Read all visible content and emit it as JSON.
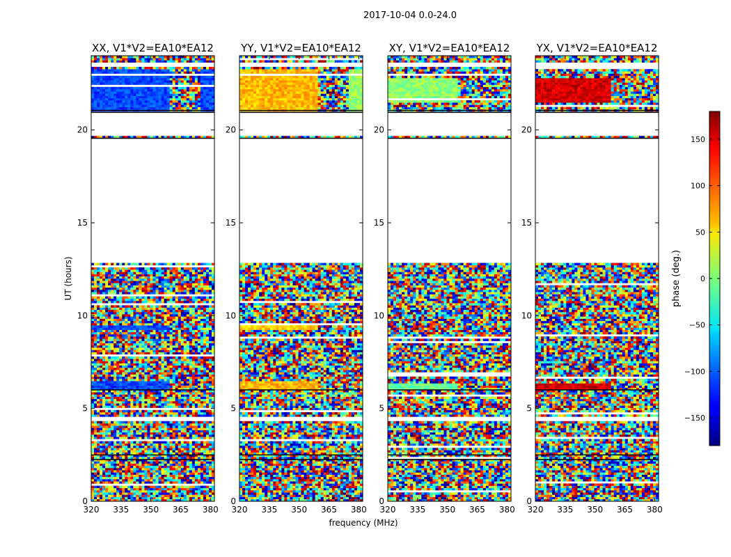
{
  "figure": {
    "suptitle": "2017-10-04 0.0-24.0",
    "colorbar_label": "phase (deg.)"
  },
  "colors": {
    "colormap": "jet",
    "flagged": "#ffffff",
    "axes": "#000000"
  },
  "chart_data": [
    {
      "type": "heatmap",
      "title": "XX, V1*V2=EA10*EA12",
      "xlabel": "",
      "ylabel": "UT (hours)",
      "xlim": [
        320,
        382
      ],
      "ylim": [
        0,
        24
      ],
      "x_ticks": [
        320,
        335,
        350,
        365,
        380
      ],
      "y_ticks": [
        0,
        5,
        10,
        15,
        20
      ],
      "z_label": "phase (deg.)",
      "z_range": [
        -180,
        180
      ],
      "z_ticks": [
        150,
        100,
        50,
        0,
        -50,
        -100,
        -150
      ],
      "flagged_ut_ranges": [
        [
          4.3,
          4.5
        ],
        [
          12.8,
          19.5
        ],
        [
          19.7,
          21.0
        ],
        [
          23.4,
          23.7
        ]
      ],
      "coherent_bands": [
        {
          "ut": [
            21.0,
            23.3
          ],
          "freq": [
            320,
            360
          ],
          "phase": -110
        },
        {
          "ut": [
            9.3,
            9.5
          ],
          "freq": [
            320,
            360
          ],
          "phase": -110
        },
        {
          "ut": [
            6.0,
            6.5
          ],
          "freq": [
            320,
            360
          ],
          "phase": -110
        },
        {
          "ut": [
            21.0,
            23.3
          ],
          "freq": [
            375,
            382
          ],
          "phase": -110
        }
      ]
    },
    {
      "type": "heatmap",
      "title": "YY, V1*V2=EA10*EA12",
      "xlabel": "frequency (MHz)",
      "ylabel": "",
      "xlim": [
        320,
        382
      ],
      "ylim": [
        0,
        24
      ],
      "x_ticks": [
        320,
        335,
        350,
        365,
        380
      ],
      "y_ticks": [
        0,
        5,
        10,
        15,
        20
      ],
      "z_label": "phase (deg.)",
      "z_range": [
        -180,
        180
      ],
      "flagged_ut_ranges": [
        [
          4.3,
          4.5
        ],
        [
          12.8,
          19.5
        ],
        [
          19.7,
          21.0
        ],
        [
          23.4,
          23.7
        ]
      ],
      "coherent_bands": [
        {
          "ut": [
            21.0,
            23.3
          ],
          "freq": [
            320,
            360
          ],
          "phase": 70
        },
        {
          "ut": [
            9.3,
            9.5
          ],
          "freq": [
            320,
            360
          ],
          "phase": 60
        },
        {
          "ut": [
            6.0,
            6.5
          ],
          "freq": [
            320,
            360
          ],
          "phase": 70
        },
        {
          "ut": [
            21.0,
            23.3
          ],
          "freq": [
            375,
            382
          ],
          "phase": 10
        }
      ]
    },
    {
      "type": "heatmap",
      "title": "XY, V1*V2=EA10*EA12",
      "xlabel": "",
      "ylabel": "",
      "xlim": [
        320,
        382
      ],
      "ylim": [
        0,
        24
      ],
      "x_ticks": [
        320,
        335,
        350,
        365,
        380
      ],
      "y_ticks": [
        0,
        5,
        10,
        15,
        20
      ],
      "z_label": "phase (deg.)",
      "z_range": [
        -180,
        180
      ],
      "flagged_ut_ranges": [
        [
          4.3,
          4.5
        ],
        [
          12.8,
          19.5
        ],
        [
          19.7,
          21.0
        ],
        [
          23.4,
          23.7
        ]
      ],
      "coherent_bands": [
        {
          "ut": [
            21.5,
            22.8
          ],
          "freq": [
            320,
            355
          ],
          "phase": 5
        },
        {
          "ut": [
            6.0,
            6.4
          ],
          "freq": [
            320,
            355
          ],
          "phase": -10
        }
      ]
    },
    {
      "type": "heatmap",
      "title": "YX, V1*V2=EA10*EA12",
      "xlabel": "",
      "ylabel": "",
      "xlim": [
        320,
        382
      ],
      "ylim": [
        0,
        24
      ],
      "x_ticks": [
        320,
        335,
        350,
        365,
        380
      ],
      "y_ticks": [
        0,
        5,
        10,
        15,
        20
      ],
      "z_label": "phase (deg.)",
      "z_range": [
        -180,
        180
      ],
      "flagged_ut_ranges": [
        [
          4.3,
          4.5
        ],
        [
          12.8,
          19.5
        ],
        [
          19.7,
          21.0
        ],
        [
          23.4,
          23.7
        ]
      ],
      "coherent_bands": [
        {
          "ut": [
            21.5,
            22.8
          ],
          "freq": [
            320,
            358
          ],
          "phase": 150
        },
        {
          "ut": [
            6.0,
            6.4
          ],
          "freq": [
            320,
            358
          ],
          "phase": 150
        }
      ]
    }
  ]
}
